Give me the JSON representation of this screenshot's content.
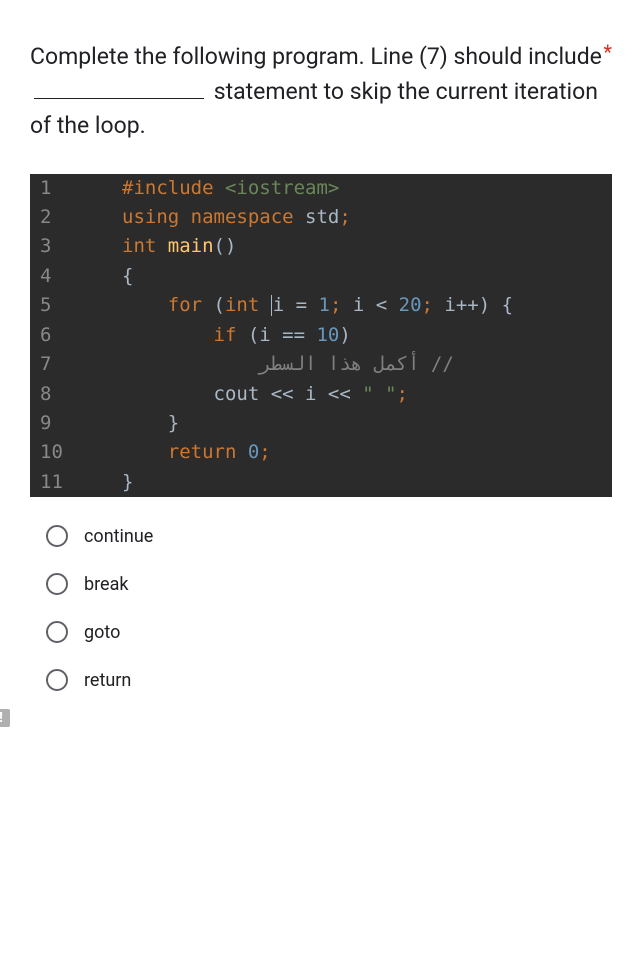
{
  "question": {
    "part1": "Complete the following program.  Line (7) should include ",
    "part2": " statement to skip the current iteration of the loop.",
    "required_marker": "*"
  },
  "code": {
    "background": "#2b2b2b",
    "line_number_color": "#888888",
    "default_text_color": "#a9b7c6",
    "colors": {
      "keyword": "#cc7832",
      "string_comment": "#6a8759",
      "number": "#6897bb",
      "function": "#ffc66d",
      "grey": "#808080"
    },
    "font_size": 19,
    "lines": [
      {
        "num": "1",
        "tokens": [
          {
            "t": "#include ",
            "c": "kw-orange"
          },
          {
            "t": "<iostream>",
            "c": "kw-green"
          }
        ]
      },
      {
        "num": "2",
        "tokens": [
          {
            "t": "using namespace ",
            "c": "kw-orange"
          },
          {
            "t": "std",
            "c": "kw-white"
          },
          {
            "t": ";",
            "c": "kw-orange"
          }
        ]
      },
      {
        "num": "3",
        "tokens": [
          {
            "t": "int ",
            "c": "kw-orange"
          },
          {
            "t": "main",
            "c": "kw-yellow"
          },
          {
            "t": "()",
            "c": "kw-white"
          }
        ]
      },
      {
        "num": "4",
        "tokens": [
          {
            "t": "{",
            "c": "kw-white"
          }
        ]
      },
      {
        "num": "5",
        "tokens": [
          {
            "t": "    ",
            "c": "kw-white"
          },
          {
            "t": "for ",
            "c": "kw-orange"
          },
          {
            "t": "(",
            "c": "kw-white"
          },
          {
            "t": "int ",
            "c": "kw-orange"
          },
          {
            "t": "|CURSOR|",
            "c": "cursor"
          },
          {
            "t": "i = ",
            "c": "kw-white"
          },
          {
            "t": "1",
            "c": "kw-blue"
          },
          {
            "t": "; ",
            "c": "kw-orange"
          },
          {
            "t": "i < ",
            "c": "kw-white"
          },
          {
            "t": "20",
            "c": "kw-blue"
          },
          {
            "t": "; ",
            "c": "kw-orange"
          },
          {
            "t": "i++) {",
            "c": "kw-white"
          }
        ]
      },
      {
        "num": "6",
        "tokens": [
          {
            "t": "        ",
            "c": "kw-white"
          },
          {
            "t": "if ",
            "c": "kw-orange"
          },
          {
            "t": "(i == ",
            "c": "kw-white"
          },
          {
            "t": "10",
            "c": "kw-blue"
          },
          {
            "t": ")",
            "c": "kw-white"
          }
        ]
      },
      {
        "num": "7",
        "tokens": [
          {
            "t": "            ",
            "c": "kw-white"
          },
          {
            "t": "أكمل هذا السطر //",
            "c": "kw-grey"
          }
        ]
      },
      {
        "num": "8",
        "tokens": [
          {
            "t": "        cout << i << ",
            "c": "kw-white"
          },
          {
            "t": "\" \"",
            "c": "kw-green"
          },
          {
            "t": ";",
            "c": "kw-orange"
          }
        ]
      },
      {
        "num": "9",
        "tokens": [
          {
            "t": "    }",
            "c": "kw-white"
          }
        ]
      },
      {
        "num": "10",
        "tokens": [
          {
            "t": "    ",
            "c": "kw-white"
          },
          {
            "t": "return ",
            "c": "kw-orange"
          },
          {
            "t": "0",
            "c": "kw-blue"
          },
          {
            "t": ";",
            "c": "kw-orange"
          }
        ]
      },
      {
        "num": "11",
        "tokens": [
          {
            "t": "}",
            "c": "kw-white"
          }
        ]
      }
    ]
  },
  "options": [
    {
      "label": "continue"
    },
    {
      "label": "break"
    },
    {
      "label": "goto"
    },
    {
      "label": "return"
    }
  ],
  "alert_icon": "!",
  "styling": {
    "body_width": 642,
    "body_height": 953,
    "question_fontsize": 23,
    "question_color": "#202124",
    "required_color": "#d93025",
    "option_fontsize": 18,
    "radio_border_color": "#5f6368",
    "background": "#ffffff"
  }
}
